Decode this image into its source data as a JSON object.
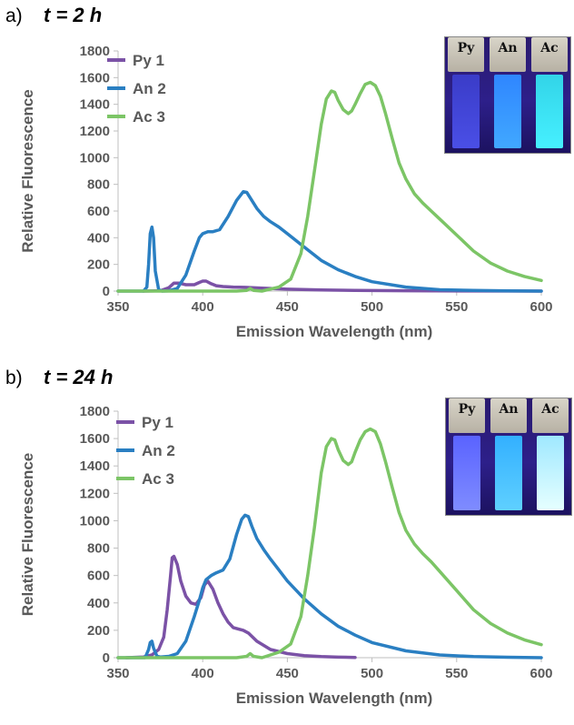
{
  "colors": {
    "py": "#7b52a6",
    "an": "#2a7fc2",
    "ac": "#7cc566",
    "axis": "#bfbfbf",
    "text": "#595959"
  },
  "chart_data": [
    {
      "panel_label": "a)",
      "panel_time": "t = 2 h",
      "type": "line",
      "xlabel": "Emission Wavelength (nm)",
      "ylabel": "Relative Fluorescence",
      "xlim": [
        350,
        600
      ],
      "ylim": [
        0,
        1800
      ],
      "xticks": [
        "350",
        "400",
        "450",
        "500",
        "550",
        "600"
      ],
      "yticks": [
        "0",
        "200",
        "400",
        "600",
        "800",
        "1000",
        "1200",
        "1400",
        "1600",
        "1800"
      ],
      "legend": {
        "position": "top-left"
      },
      "photo": {
        "labels": [
          "Py",
          "An",
          "Ac"
        ]
      },
      "series": [
        {
          "name": "Py 1",
          "key": "py",
          "x": [
            365,
            375,
            380,
            383,
            386,
            390,
            395,
            398,
            400,
            402,
            405,
            408,
            412,
            418,
            425,
            435,
            450,
            470,
            490,
            520,
            560,
            600
          ],
          "y": [
            0,
            3,
            25,
            60,
            60,
            48,
            48,
            65,
            75,
            75,
            55,
            40,
            34,
            30,
            28,
            22,
            14,
            8,
            5,
            3,
            1,
            0
          ]
        },
        {
          "name": "An 2",
          "key": "an",
          "x": [
            350,
            360,
            365,
            367,
            368,
            369,
            370,
            371,
            372,
            374,
            376,
            380,
            385,
            390,
            395,
            398,
            400,
            403,
            406,
            410,
            415,
            420,
            424,
            426,
            428,
            432,
            436,
            440,
            445,
            450,
            460,
            470,
            480,
            490,
            500,
            520,
            540,
            560,
            580,
            600
          ],
          "y": [
            0,
            0,
            0,
            30,
            200,
            430,
            480,
            400,
            150,
            10,
            0,
            2,
            20,
            120,
            300,
            400,
            430,
            445,
            445,
            460,
            560,
            680,
            745,
            740,
            700,
            620,
            560,
            520,
            480,
            430,
            330,
            230,
            160,
            110,
            70,
            30,
            10,
            5,
            2,
            0
          ]
        },
        {
          "name": "Ac 3",
          "key": "ac",
          "x": [
            350,
            400,
            420,
            426,
            428,
            430,
            435,
            445,
            452,
            458,
            462,
            466,
            470,
            473,
            476,
            478,
            480,
            483,
            486,
            488,
            490,
            493,
            496,
            499,
            502,
            505,
            508,
            512,
            516,
            520,
            525,
            530,
            535,
            540,
            550,
            560,
            570,
            580,
            590,
            600
          ],
          "y": [
            0,
            0,
            0,
            5,
            20,
            5,
            0,
            30,
            90,
            280,
            560,
            900,
            1250,
            1440,
            1500,
            1490,
            1430,
            1360,
            1330,
            1350,
            1400,
            1480,
            1550,
            1565,
            1540,
            1460,
            1330,
            1140,
            960,
            840,
            730,
            660,
            600,
            540,
            420,
            300,
            210,
            150,
            110,
            80
          ]
        }
      ]
    },
    {
      "panel_label": "b)",
      "panel_time": "t = 24 h",
      "type": "line",
      "xlabel": "Emission Wavelength (nm)",
      "ylabel": "Relative Fluorescence",
      "xlim": [
        350,
        600
      ],
      "ylim": [
        0,
        1800
      ],
      "xticks": [
        "350",
        "400",
        "450",
        "500",
        "550",
        "600"
      ],
      "yticks": [
        "0",
        "200",
        "400",
        "600",
        "800",
        "1000",
        "1200",
        "1400",
        "1600",
        "1800"
      ],
      "legend": {
        "position": "top-left"
      },
      "photo": {
        "labels": [
          "Py",
          "An",
          "Ac"
        ]
      },
      "series": [
        {
          "name": "Py 1",
          "key": "py",
          "x": [
            355,
            365,
            370,
            374,
            377,
            379,
            381,
            382,
            383,
            385,
            387,
            390,
            393,
            396,
            399,
            401,
            403,
            406,
            409,
            412,
            415,
            418,
            421,
            424,
            427,
            432,
            440,
            450,
            460,
            470,
            480,
            490
          ],
          "y": [
            0,
            5,
            20,
            60,
            150,
            350,
            600,
            730,
            740,
            680,
            560,
            450,
            400,
            390,
            440,
            530,
            560,
            500,
            400,
            320,
            260,
            220,
            210,
            200,
            180,
            120,
            60,
            30,
            15,
            8,
            4,
            2
          ]
        },
        {
          "name": "An 2",
          "key": "an",
          "x": [
            350,
            360,
            366,
            368,
            369,
            370,
            371,
            373,
            375,
            380,
            385,
            390,
            395,
            398,
            400,
            402,
            405,
            408,
            412,
            416,
            420,
            423,
            425,
            427,
            429,
            432,
            436,
            440,
            445,
            450,
            460,
            470,
            480,
            490,
            500,
            520,
            540,
            560,
            580,
            600
          ],
          "y": [
            0,
            0,
            0,
            60,
            110,
            120,
            70,
            10,
            5,
            10,
            30,
            120,
            300,
            420,
            510,
            570,
            600,
            620,
            640,
            720,
            900,
            1010,
            1040,
            1030,
            960,
            870,
            790,
            720,
            640,
            560,
            430,
            320,
            230,
            165,
            110,
            50,
            20,
            8,
            3,
            0
          ]
        },
        {
          "name": "Ac 3",
          "key": "ac",
          "x": [
            350,
            400,
            420,
            426,
            428,
            430,
            435,
            445,
            452,
            458,
            462,
            466,
            470,
            473,
            476,
            478,
            480,
            483,
            486,
            488,
            490,
            493,
            496,
            499,
            502,
            505,
            508,
            512,
            516,
            520,
            525,
            530,
            535,
            540,
            550,
            560,
            570,
            580,
            590,
            600
          ],
          "y": [
            0,
            0,
            0,
            10,
            30,
            10,
            0,
            40,
            100,
            300,
            600,
            950,
            1350,
            1540,
            1600,
            1590,
            1520,
            1440,
            1410,
            1430,
            1500,
            1590,
            1650,
            1670,
            1650,
            1560,
            1430,
            1240,
            1060,
            930,
            830,
            760,
            700,
            630,
            490,
            350,
            250,
            180,
            130,
            95
          ]
        }
      ]
    }
  ]
}
